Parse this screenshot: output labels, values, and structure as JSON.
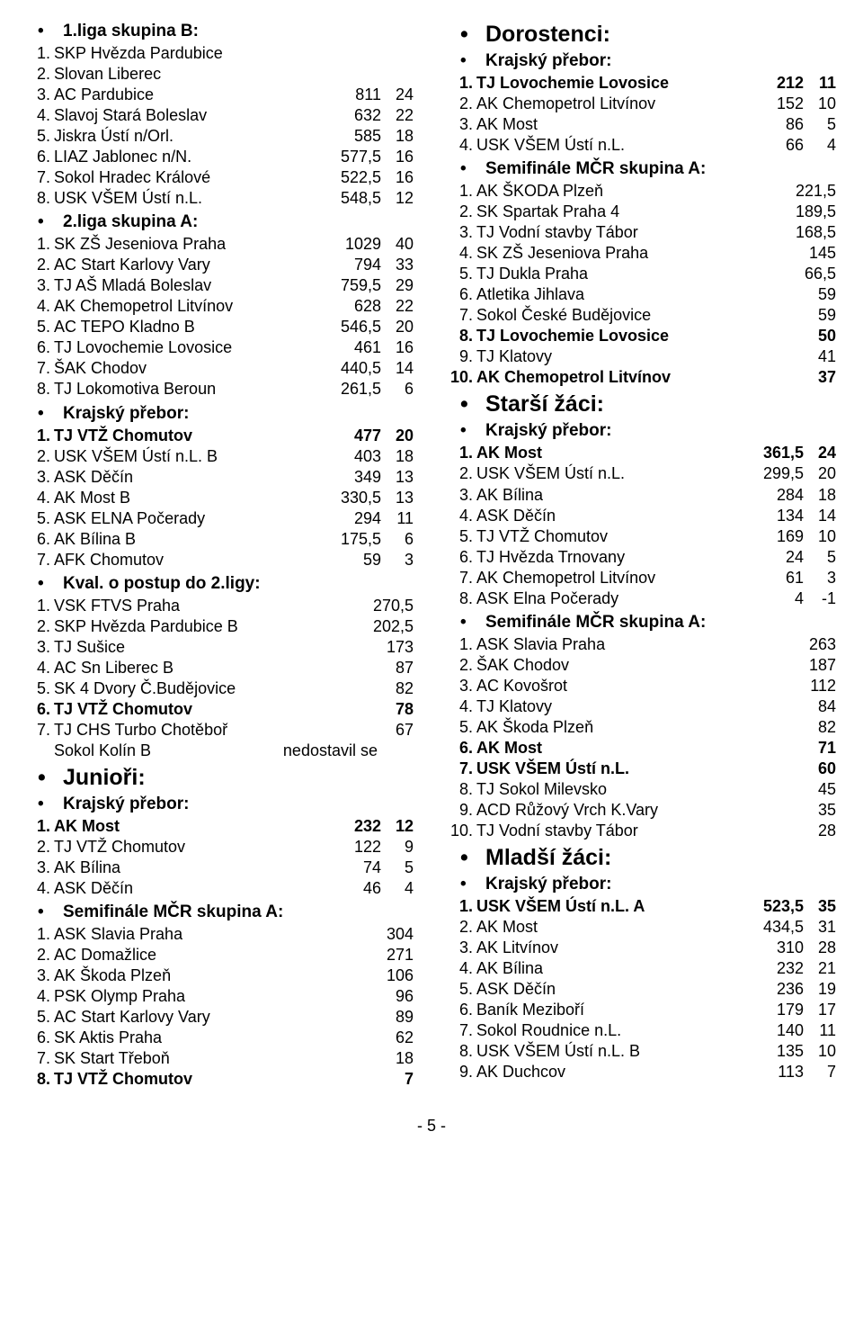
{
  "left": [
    {
      "type": "h2",
      "text": "1.liga skupina B:",
      "bold": true
    },
    {
      "rows": [
        {
          "n": "1.",
          "name": "SKP Hvězda Pardubice"
        },
        {
          "n": "2.",
          "name": "Slovan Liberec"
        },
        {
          "n": "3.",
          "name": "AC Pardubice",
          "v1": "811",
          "v2": "24"
        },
        {
          "n": "4.",
          "name": "Slavoj Stará Boleslav",
          "v1": "632",
          "v2": "22"
        },
        {
          "n": "5.",
          "name": "Jiskra Ústí n/Orl.",
          "v1": "585",
          "v2": "18"
        },
        {
          "n": "6.",
          "name": "LIAZ Jablonec n/N.",
          "v1": "577,5",
          "v2": "16"
        },
        {
          "n": "7.",
          "name": "Sokol Hradec Králové",
          "v1": "522,5",
          "v2": "16"
        },
        {
          "n": "8.",
          "name": "USK VŠEM Ústí n.L.",
          "v1": "548,5",
          "v2": "12"
        }
      ]
    },
    {
      "type": "h2",
      "text": "2.liga skupina A:",
      "bold": true
    },
    {
      "rows": [
        {
          "n": "1.",
          "name": "SK ZŠ Jeseniova Praha",
          "v1": "1029",
          "v2": "40"
        },
        {
          "n": "2.",
          "name": "AC Start Karlovy Vary",
          "v1": "794",
          "v2": "33"
        },
        {
          "n": "3.",
          "name": "TJ AŠ Mladá Boleslav",
          "v1": "759,5",
          "v2": "29"
        },
        {
          "n": "4.",
          "name": "AK Chemopetrol Litvínov",
          "v1": "628",
          "v2": "22"
        },
        {
          "n": "5.",
          "name": "AC TEPO Kladno B",
          "v1": "546,5",
          "v2": "20"
        },
        {
          "n": "6.",
          "name": "TJ Lovochemie Lovosice",
          "v1": "461",
          "v2": "16"
        },
        {
          "n": "7.",
          "name": "ŠAK Chodov",
          "v1": "440,5",
          "v2": "14"
        },
        {
          "n": "8.",
          "name": "TJ Lokomotiva Beroun",
          "v1": "261,5",
          "v2": "6"
        }
      ]
    },
    {
      "type": "h2",
      "text": "Krajský přebor:",
      "bold": true
    },
    {
      "rows": [
        {
          "n": "1.",
          "name": "TJ VTŽ Chomutov",
          "v1": "477",
          "v2": "20",
          "bold": true
        },
        {
          "n": "2.",
          "name": "USK VŠEM Ústí n.L. B",
          "v1": "403",
          "v2": "18"
        },
        {
          "n": "3.",
          "name": "ASK Děčín",
          "v1": "349",
          "v2": "13"
        },
        {
          "n": "4.",
          "name": "AK Most B",
          "v1": "330,5",
          "v2": "13"
        },
        {
          "n": "5.",
          "name": "ASK ELNA Počerady",
          "v1": "294",
          "v2": "11"
        },
        {
          "n": "6.",
          "name": "AK Bílina B",
          "v1": "175,5",
          "v2": "6"
        },
        {
          "n": "7.",
          "name": "AFK Chomutov",
          "v1": "59",
          "v2": "3"
        }
      ]
    },
    {
      "type": "h2",
      "text": "Kval. o postup do 2.ligy:",
      "bold": true
    },
    {
      "rows": [
        {
          "n": "1.",
          "name": "VSK FTVS Praha",
          "v1": "270,5"
        },
        {
          "n": "2.",
          "name": "SKP Hvězda Pardubice B",
          "v1": "202,5"
        },
        {
          "n": "3.",
          "name": "TJ Sušice",
          "v1": "173"
        },
        {
          "n": "4.",
          "name": "AC Sn Liberec B",
          "v1": "87"
        },
        {
          "n": "5.",
          "name": "SK 4 Dvory Č.Budějovice",
          "v1": "82"
        },
        {
          "n": "6.",
          "name": "TJ VTŽ Chomutov",
          "v1": "78",
          "bold": true
        },
        {
          "n": "7.",
          "name": "TJ CHS Turbo Chotěboř",
          "v1": "67"
        }
      ]
    },
    {
      "type": "special",
      "name": "Sokol Kolín B",
      "note": "nedostavil se"
    },
    {
      "type": "h1",
      "text": "Junioři:",
      "bold": true
    },
    {
      "type": "h2",
      "text": "Krajský přebor:",
      "bold": true
    },
    {
      "rows": [
        {
          "n": "1.",
          "name": "AK Most",
          "v1": "232",
          "v2": "12",
          "bold": true
        },
        {
          "n": "2.",
          "name": "TJ VTŽ Chomutov",
          "v1": "122",
          "v2": "9"
        },
        {
          "n": "3.",
          "name": "AK Bílina",
          "v1": "74",
          "v2": "5"
        },
        {
          "n": "4.",
          "name": "ASK Děčín",
          "v1": "46",
          "v2": "4"
        }
      ]
    },
    {
      "type": "h2",
      "text": "Semifinále MČR skupina A:",
      "bold": true
    },
    {
      "rows": [
        {
          "n": "1.",
          "name": "ASK Slavia Praha",
          "v1": "304"
        },
        {
          "n": "2.",
          "name": "AC Domažlice",
          "v1": "271"
        },
        {
          "n": "3.",
          "name": "AK Škoda Plzeň",
          "v1": "106"
        },
        {
          "n": "4.",
          "name": "PSK Olymp Praha",
          "v1": "96"
        },
        {
          "n": "5.",
          "name": "AC Start Karlovy Vary",
          "v1": "89"
        },
        {
          "n": "6.",
          "name": "SK Aktis Praha",
          "v1": "62"
        },
        {
          "n": "7.",
          "name": "SK Start Třeboň",
          "v1": "18"
        },
        {
          "n": "8.",
          "name": "TJ VTŽ Chomutov",
          "v1": "7",
          "bold": true
        }
      ]
    }
  ],
  "right": [
    {
      "type": "h1",
      "text": "Dorostenci:",
      "bold": true
    },
    {
      "type": "h2",
      "text": "Krajský přebor:",
      "bold": true
    },
    {
      "rows": [
        {
          "n": "1.",
          "name": "TJ Lovochemie Lovosice",
          "v1": "212",
          "v2": "11",
          "bold": true
        },
        {
          "n": "2.",
          "name": "AK Chemopetrol Litvínov",
          "v1": "152",
          "v2": "10"
        },
        {
          "n": "3.",
          "name": "AK Most",
          "v1": "86",
          "v2": "5"
        },
        {
          "n": "4.",
          "name": "USK VŠEM Ústí n.L.",
          "v1": "66",
          "v2": "4"
        }
      ]
    },
    {
      "type": "h2",
      "text": "Semifinále MČR skupina A:",
      "bold": true
    },
    {
      "rows": [
        {
          "n": "1.",
          "name": "AK ŠKODA Plzeň",
          "v1": "221,5"
        },
        {
          "n": "2.",
          "name": "SK Spartak Praha 4",
          "v1": "189,5"
        },
        {
          "n": "3.",
          "name": "TJ Vodní stavby Tábor",
          "v1": "168,5"
        },
        {
          "n": "4.",
          "name": "SK ZŠ Jeseniova Praha",
          "v1": "145"
        },
        {
          "n": "5.",
          "name": "TJ Dukla Praha",
          "v1": "66,5"
        },
        {
          "n": "6.",
          "name": "Atletika Jihlava",
          "v1": "59"
        },
        {
          "n": "7.",
          "name": "Sokol České Budějovice",
          "v1": "59"
        },
        {
          "n": "8.",
          "name": "TJ Lovochemie Lovosice",
          "v1": "50",
          "bold": true
        },
        {
          "n": "9.",
          "name": "TJ Klatovy",
          "v1": "41"
        },
        {
          "n": "10.",
          "name": "AK Chemopetrol Litvínov",
          "v1": "37",
          "bold": true
        }
      ]
    },
    {
      "type": "h1",
      "text": "Starší žáci:",
      "bold": true
    },
    {
      "type": "h2",
      "text": "Krajský přebor:",
      "bold": true
    },
    {
      "rows": [
        {
          "n": "1.",
          "name": "AK Most",
          "v1": "361,5",
          "v2": "24",
          "bold": true
        },
        {
          "n": "2.",
          "name": "USK VŠEM Ústí n.L.",
          "v1": "299,5",
          "v2": "20"
        },
        {
          "n": "3.",
          "name": "AK Bílina",
          "v1": "284",
          "v2": "18"
        },
        {
          "n": "4.",
          "name": "ASK Děčín",
          "v1": "134",
          "v2": "14"
        },
        {
          "n": "5.",
          "name": "TJ VTŽ Chomutov",
          "v1": "169",
          "v2": "10"
        },
        {
          "n": "6.",
          "name": "TJ Hvězda Trnovany",
          "v1": "24",
          "v2": "5"
        },
        {
          "n": "7.",
          "name": "AK Chemopetrol Litvínov",
          "v1": "61",
          "v2": "3"
        },
        {
          "n": "8.",
          "name": "ASK Elna Počerady",
          "v1": "4",
          "v2": "-1"
        }
      ]
    },
    {
      "type": "h2",
      "text": "Semifinále MČR skupina A:",
      "bold": true
    },
    {
      "rows": [
        {
          "n": "1.",
          "name": "ASK Slavia Praha",
          "v1": "263"
        },
        {
          "n": "2.",
          "name": "ŠAK Chodov",
          "v1": "187"
        },
        {
          "n": "3.",
          "name": "AC Kovošrot",
          "v1": "112"
        },
        {
          "n": "4.",
          "name": "TJ Klatovy",
          "v1": "84"
        },
        {
          "n": "5.",
          "name": "AK Škoda Plzeň",
          "v1": "82"
        },
        {
          "n": "6.",
          "name": "AK Most",
          "v1": "71",
          "bold": true
        },
        {
          "n": "7.",
          "name": "USK VŠEM Ústí n.L.",
          "v1": "60",
          "bold": true
        },
        {
          "n": "8.",
          "name": "TJ Sokol Milevsko",
          "v1": "45"
        },
        {
          "n": "9.",
          "name": "ACD Růžový Vrch K.Vary",
          "v1": "35"
        },
        {
          "n": "10.",
          "name": "TJ Vodní stavby Tábor",
          "v1": "28"
        }
      ]
    },
    {
      "type": "h1",
      "text": "Mladší žáci:",
      "bold": true
    },
    {
      "type": "h2",
      "text": "Krajský přebor:",
      "bold": true
    },
    {
      "rows": [
        {
          "n": "1.",
          "name": "USK VŠEM Ústí n.L. A",
          "v1": "523,5",
          "v2": "35",
          "bold": true
        },
        {
          "n": "2.",
          "name": "AK Most",
          "v1": "434,5",
          "v2": "31"
        },
        {
          "n": "3.",
          "name": "AK Litvínov",
          "v1": "310",
          "v2": "28"
        },
        {
          "n": "4.",
          "name": "AK Bílina",
          "v1": "232",
          "v2": "21"
        },
        {
          "n": "5.",
          "name": "ASK Děčín",
          "v1": "236",
          "v2": "19"
        },
        {
          "n": "6.",
          "name": "Baník Meziboří",
          "v1": "179",
          "v2": "17"
        },
        {
          "n": "7.",
          "name": "Sokol Roudnice n.L.",
          "v1": "140",
          "v2": "11"
        },
        {
          "n": "8.",
          "name": "USK VŠEM Ústí n.L. B",
          "v1": "135",
          "v2": "10"
        },
        {
          "n": "9.",
          "name": "AK Duchcov",
          "v1": "113",
          "v2": "7"
        }
      ]
    }
  ],
  "footer": "- 5 -"
}
